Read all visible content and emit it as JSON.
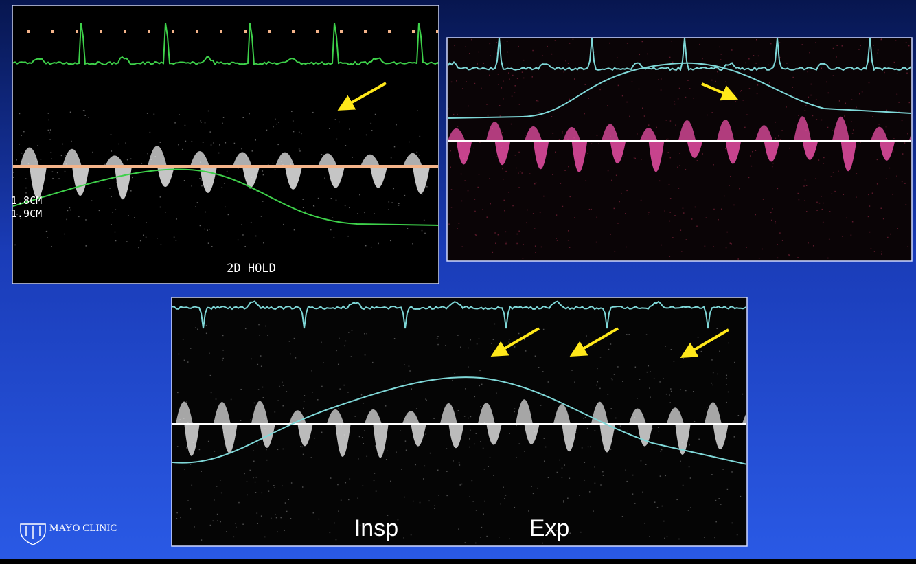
{
  "panels": [
    {
      "labels": [
        "1.8CM",
        "1.9CM",
        "2D HOLD"
      ]
    },
    {
      "labels": []
    },
    {
      "labels": [
        "Insp",
        "Exp"
      ]
    }
  ],
  "footer": {
    "logo": "MAYO CLINIC"
  }
}
